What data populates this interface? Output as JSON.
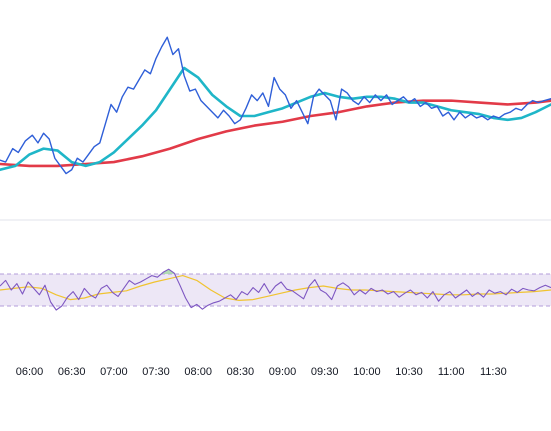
{
  "colors": {
    "background": "#ffffff",
    "price_line": "#2f5fd8",
    "ma_fast": "#1fb6c8",
    "ma_slow": "#e23a48",
    "rsi_line": "#7e57c2",
    "rsi_signal": "#f0c330",
    "rsi_band_fill": "#ede7f6",
    "rsi_band_border": "#b39ddb",
    "overbought_fill": "#a5d6a7",
    "separator": "#e0e3eb"
  },
  "chart_data": [
    {
      "type": "line",
      "pane": "price",
      "title": "",
      "x_unit": "time",
      "x_labels": [
        "06:00",
        "06:30",
        "07:00",
        "07:30",
        "08:00",
        "08:30",
        "09:00",
        "09:30",
        "10:00",
        "10:30",
        "11:00",
        "11:30"
      ],
      "x_label_times": [
        360,
        390,
        420,
        450,
        480,
        510,
        540,
        570,
        600,
        630,
        660,
        690
      ],
      "xlim": [
        339,
        731
      ],
      "ylim": [
        0,
        1
      ],
      "y_axis_visible": false,
      "grid": false,
      "legend": "none",
      "series": [
        {
          "role": "price",
          "color": "#2f5fd8",
          "x": [
            339,
            343,
            348,
            352,
            357,
            362,
            366,
            370,
            374,
            378,
            382,
            386,
            390,
            394,
            398,
            402,
            406,
            410,
            414,
            418,
            422,
            426,
            430,
            434,
            438,
            442,
            446,
            450,
            454,
            458,
            462,
            466,
            470,
            474,
            478,
            482,
            486,
            490,
            494,
            498,
            502,
            506,
            510,
            514,
            518,
            522,
            526,
            530,
            534,
            538,
            542,
            546,
            550,
            554,
            558,
            562,
            566,
            570,
            574,
            578,
            582,
            586,
            590,
            594,
            598,
            602,
            606,
            610,
            614,
            618,
            622,
            626,
            630,
            634,
            638,
            642,
            646,
            650,
            654,
            658,
            662,
            666,
            670,
            674,
            678,
            682,
            686,
            690,
            694,
            698,
            702,
            706,
            710,
            714,
            718,
            722,
            726,
            731
          ],
          "y": [
            0.27,
            0.26,
            0.33,
            0.31,
            0.37,
            0.4,
            0.36,
            0.41,
            0.38,
            0.28,
            0.24,
            0.2,
            0.22,
            0.28,
            0.26,
            0.3,
            0.34,
            0.36,
            0.46,
            0.56,
            0.52,
            0.6,
            0.65,
            0.64,
            0.69,
            0.74,
            0.72,
            0.8,
            0.86,
            0.91,
            0.82,
            0.85,
            0.71,
            0.63,
            0.64,
            0.58,
            0.55,
            0.52,
            0.49,
            0.53,
            0.5,
            0.46,
            0.48,
            0.54,
            0.61,
            0.58,
            0.62,
            0.55,
            0.7,
            0.64,
            0.61,
            0.54,
            0.58,
            0.52,
            0.46,
            0.6,
            0.64,
            0.61,
            0.58,
            0.48,
            0.64,
            0.62,
            0.58,
            0.56,
            0.6,
            0.57,
            0.61,
            0.58,
            0.61,
            0.56,
            0.58,
            0.6,
            0.57,
            0.59,
            0.55,
            0.57,
            0.54,
            0.55,
            0.5,
            0.52,
            0.48,
            0.52,
            0.49,
            0.51,
            0.49,
            0.5,
            0.48,
            0.5,
            0.49,
            0.51,
            0.52,
            0.54,
            0.53,
            0.56,
            0.58,
            0.57,
            0.58,
            0.59
          ]
        },
        {
          "role": "moving_average_fast",
          "color": "#1fb6c8",
          "x": [
            339,
            350,
            360,
            370,
            380,
            390,
            400,
            410,
            420,
            430,
            440,
            450,
            460,
            470,
            480,
            490,
            500,
            510,
            520,
            530,
            540,
            550,
            560,
            570,
            580,
            590,
            600,
            610,
            620,
            630,
            640,
            650,
            660,
            670,
            680,
            690,
            700,
            710,
            720,
            731
          ],
          "y": [
            0.22,
            0.24,
            0.3,
            0.33,
            0.32,
            0.26,
            0.24,
            0.26,
            0.31,
            0.38,
            0.45,
            0.53,
            0.64,
            0.75,
            0.7,
            0.61,
            0.55,
            0.5,
            0.5,
            0.52,
            0.54,
            0.57,
            0.6,
            0.62,
            0.6,
            0.59,
            0.6,
            0.6,
            0.59,
            0.57,
            0.57,
            0.55,
            0.53,
            0.52,
            0.51,
            0.49,
            0.48,
            0.49,
            0.52,
            0.56
          ]
        },
        {
          "role": "moving_average_slow",
          "color": "#e23a48",
          "x": [
            339,
            360,
            380,
            400,
            420,
            440,
            460,
            480,
            500,
            520,
            540,
            560,
            580,
            600,
            620,
            640,
            660,
            680,
            700,
            720,
            731
          ],
          "y": [
            0.25,
            0.24,
            0.24,
            0.25,
            0.26,
            0.29,
            0.33,
            0.38,
            0.42,
            0.45,
            0.47,
            0.5,
            0.52,
            0.55,
            0.57,
            0.58,
            0.58,
            0.57,
            0.56,
            0.57,
            0.58
          ]
        }
      ]
    },
    {
      "type": "line",
      "pane": "oscillator",
      "title": "",
      "x_unit": "time",
      "xlim": [
        339,
        731
      ],
      "ylim": [
        0,
        100
      ],
      "y_axis_visible": false,
      "grid": false,
      "legend": "none",
      "band": [
        30,
        70
      ],
      "series": [
        {
          "role": "rsi",
          "color": "#7e57c2",
          "x": [
            339,
            343,
            347,
            351,
            355,
            359,
            363,
            367,
            371,
            375,
            379,
            383,
            387,
            391,
            395,
            399,
            403,
            407,
            411,
            415,
            419,
            423,
            427,
            431,
            435,
            439,
            443,
            447,
            451,
            455,
            459,
            463,
            467,
            471,
            475,
            479,
            483,
            487,
            491,
            495,
            499,
            503,
            507,
            511,
            515,
            519,
            523,
            527,
            531,
            535,
            539,
            543,
            547,
            551,
            555,
            559,
            563,
            567,
            571,
            575,
            579,
            583,
            587,
            591,
            595,
            599,
            603,
            607,
            611,
            615,
            619,
            623,
            627,
            631,
            635,
            639,
            643,
            647,
            651,
            655,
            659,
            663,
            667,
            671,
            675,
            679,
            683,
            687,
            691,
            695,
            699,
            703,
            707,
            711,
            715,
            719,
            723,
            727,
            731
          ],
          "y": [
            55,
            62,
            50,
            58,
            45,
            60,
            52,
            44,
            56,
            35,
            25,
            30,
            41,
            48,
            38,
            52,
            44,
            40,
            52,
            56,
            47,
            42,
            52,
            62,
            57,
            60,
            64,
            68,
            66,
            72,
            76,
            71,
            56,
            40,
            28,
            32,
            26,
            31,
            34,
            36,
            40,
            44,
            38,
            48,
            44,
            53,
            47,
            58,
            46,
            55,
            60,
            51,
            49,
            44,
            39,
            55,
            63,
            50,
            46,
            38,
            55,
            59,
            54,
            44,
            50,
            45,
            52,
            48,
            50,
            45,
            48,
            41,
            46,
            50,
            44,
            47,
            40,
            48,
            36,
            44,
            48,
            40,
            45,
            50,
            42,
            47,
            41,
            50,
            46,
            48,
            44,
            51,
            47,
            52,
            50,
            49,
            53,
            56,
            53
          ]
        },
        {
          "role": "signal",
          "color": "#f0c330",
          "x": [
            339,
            349,
            359,
            369,
            379,
            389,
            399,
            409,
            419,
            429,
            439,
            449,
            459,
            469,
            479,
            489,
            499,
            509,
            519,
            529,
            539,
            549,
            559,
            569,
            579,
            589,
            599,
            609,
            619,
            629,
            639,
            649,
            659,
            669,
            679,
            689,
            699,
            709,
            719,
            731
          ],
          "y": [
            50,
            52,
            54,
            52,
            44,
            38,
            40,
            45,
            47,
            49,
            55,
            60,
            64,
            68,
            62,
            50,
            40,
            37,
            38,
            42,
            46,
            50,
            53,
            55,
            52,
            50,
            50,
            49,
            48,
            47,
            46,
            45,
            44,
            44,
            45,
            45,
            46,
            47,
            48,
            50
          ]
        }
      ]
    }
  ]
}
